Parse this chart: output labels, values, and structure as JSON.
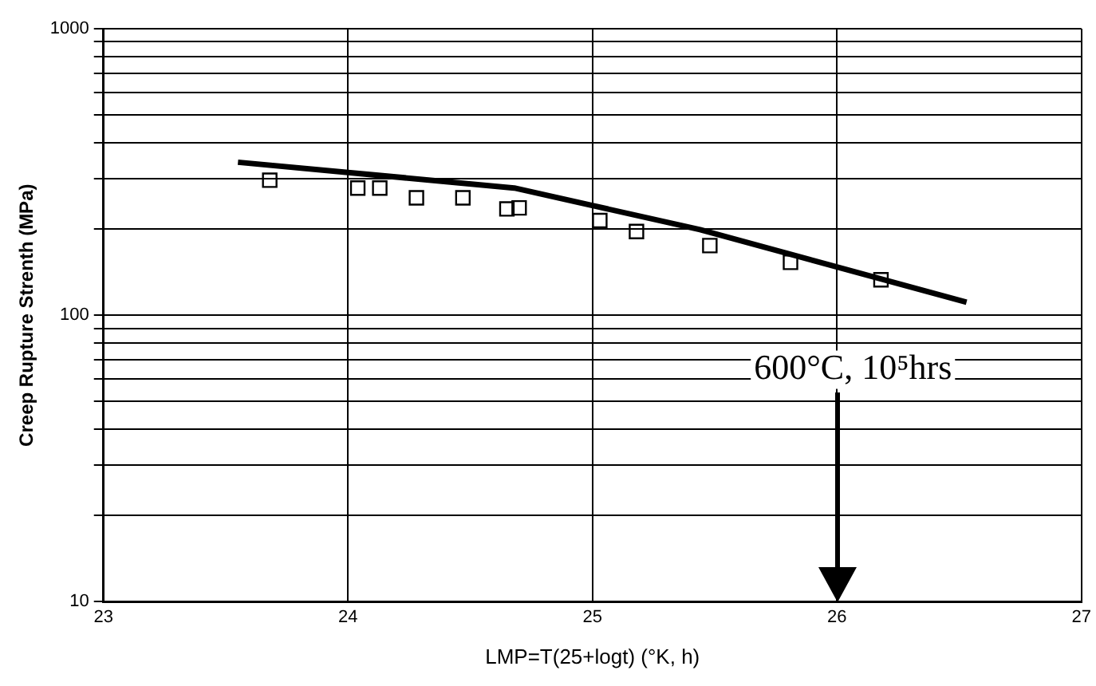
{
  "chart_data": {
    "type": "scatter",
    "xlabel": "LMP=T(25+logt) (°K, h)",
    "ylabel": "Creep Rupture Strenth (MPa)",
    "series": [
      {
        "color": "#000000",
        "marker": "square",
        "x": [
          23.68,
          24.04,
          24.13,
          24.28,
          24.47,
          24.65,
          24.7,
          25.03,
          25.18,
          25.48,
          25.81,
          26.18
        ],
        "values": [
          296,
          278,
          278,
          257,
          257,
          235,
          237,
          214,
          196,
          175,
          153,
          133
        ]
      },
      {
        "type": "line",
        "color": "#000000",
        "marker": "none",
        "x": [
          23.55,
          24.68,
          25.44,
          26.53
        ],
        "values": [
          342,
          278,
          199,
          111
        ]
      }
    ],
    "xlim": [
      23,
      27
    ],
    "xticks": [
      23,
      24,
      25,
      26,
      27
    ],
    "ylim": [
      10,
      1000
    ],
    "yticks": [
      10,
      {
        "value": 20,
        "label": null
      },
      {
        "value": 30,
        "label": null
      },
      {
        "value": 40,
        "label": null
      },
      {
        "value": 50,
        "label": null
      },
      {
        "value": 60,
        "label": null
      },
      {
        "value": 70,
        "label": null
      },
      {
        "value": 80,
        "label": null
      },
      {
        "value": 90,
        "label": null
      },
      100,
      {
        "value": 200,
        "label": null
      },
      {
        "value": 300,
        "label": null
      },
      {
        "value": 400,
        "label": null
      },
      {
        "value": 500,
        "label": null
      },
      {
        "value": 600,
        "label": null
      },
      {
        "value": 700,
        "label": null
      },
      {
        "value": 800,
        "label": null
      },
      {
        "value": 900,
        "label": null
      },
      1000
    ],
    "log": "y",
    "grid": true,
    "legend": false,
    "annotations": [
      "600°C, 10⁵hrs"
    ]
  }
}
